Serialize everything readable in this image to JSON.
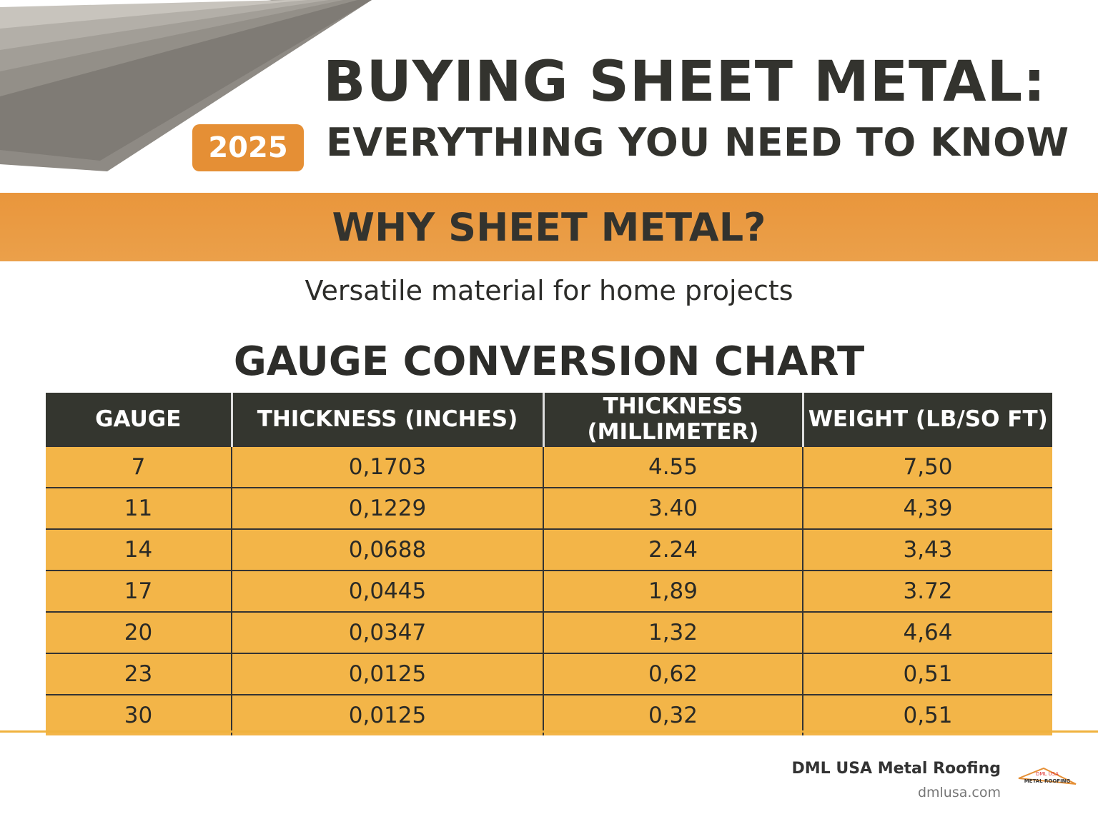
{
  "header": {
    "badge": "2025",
    "title": "BUYING SHEET METAL:",
    "subtitle": "EVERYTHING YOU NEED TO KNOW"
  },
  "banner": "WHY SHEET METAL?",
  "tagline": "Versatile material for home projects",
  "table": {
    "title": "GAUGE CONVERSION CHART",
    "columns": [
      "GAUGE",
      "THICKNESS (INCHES)",
      "THICKNESS (MILLIMETER)",
      "WEIGHT (LB/SO FT)"
    ],
    "rows": [
      [
        "7",
        "0,1703",
        "4.55",
        "7,50"
      ],
      [
        "11",
        "0,1229",
        "3.40",
        "4,39"
      ],
      [
        "14",
        "0,0688",
        "2.24",
        "3,43"
      ],
      [
        "17",
        "0,0445",
        "1,89",
        "3.72"
      ],
      [
        "20",
        "0,0347",
        "1,32",
        "4,64"
      ],
      [
        "23",
        "0,0125",
        "0,62",
        "0,51"
      ],
      [
        "30",
        "0,0125",
        "0,32",
        "0,51"
      ]
    ]
  },
  "footer": {
    "brand": "DML USA Metal Roofing",
    "url": "dmlusa.com",
    "logo_top": "DML USA",
    "logo_bottom": "METAL ROOFING"
  }
}
